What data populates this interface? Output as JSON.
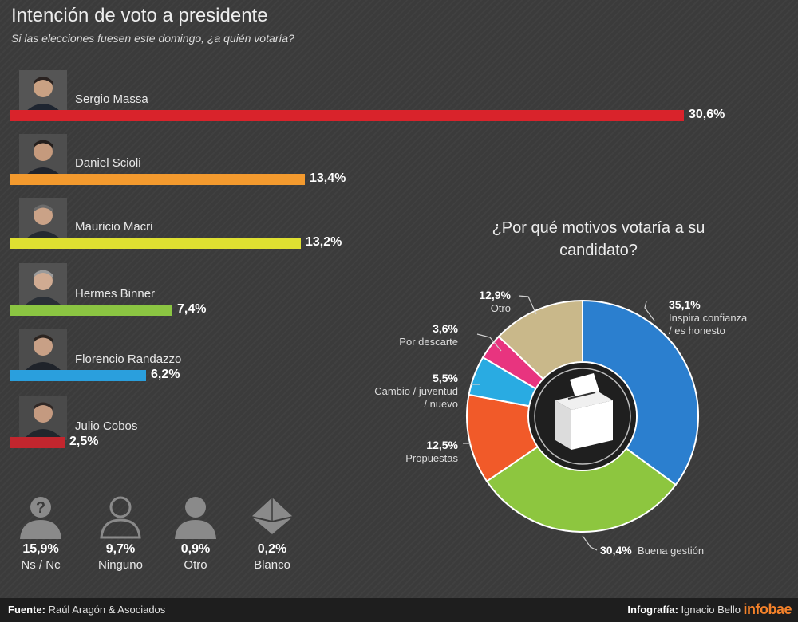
{
  "title": "Intención de voto a presidente",
  "subtitle": "Si las elecciones fuesen este domingo, ¿a quién votaría?",
  "chart_data": [
    {
      "type": "bar",
      "orientation": "horizontal",
      "title": "Intención de voto a presidente",
      "categories": [
        "Sergio Massa",
        "Daniel Scioli",
        "Mauricio Macri",
        "Hermes Binner",
        "Florencio Randazzo",
        "Julio Cobos"
      ],
      "values": [
        30.6,
        13.4,
        13.2,
        7.4,
        6.2,
        2.5
      ],
      "value_labels": [
        "30,6%",
        "13,4%",
        "13,2%",
        "7,4%",
        "6,2%",
        "2,5%"
      ],
      "colors": [
        "#d9232b",
        "#f39a2e",
        "#dfe031",
        "#8bc542",
        "#2a9fdd",
        "#c2262e"
      ],
      "grid": false
    },
    {
      "type": "pie",
      "variant": "donut",
      "title": "¿Por qué motivos votaría a su candidato?",
      "categories": [
        "Inspira confianza / es honesto",
        "Buena gestión",
        "Propuestas",
        "Cambio / juventud / nuevo",
        "Por descarte",
        "Otro"
      ],
      "values": [
        35.1,
        30.4,
        12.5,
        5.5,
        3.6,
        12.9
      ],
      "value_labels": [
        "35,1%",
        "30,4%",
        "12,5%",
        "5,5%",
        "3,6%",
        "12,9%"
      ],
      "colors": [
        "#2b7fcf",
        "#8dc63f",
        "#f15a29",
        "#29abe2",
        "#e8347f",
        "#c9b88a"
      ]
    }
  ],
  "chart_title": "¿Por qué motivos votaría a su candidato?",
  "candidates": [
    {
      "name": "Sergio Massa",
      "value": 30.6,
      "label": "30,6%",
      "color": "#d9232b"
    },
    {
      "name": "Daniel Scioli",
      "value": 13.4,
      "label": "13,4%",
      "color": "#f39a2e"
    },
    {
      "name": "Mauricio Macri",
      "value": 13.2,
      "label": "13,2%",
      "color": "#dfe031"
    },
    {
      "name": "Hermes Binner",
      "value": 7.4,
      "label": "7,4%",
      "color": "#8bc542"
    },
    {
      "name": "Florencio Randazzo",
      "value": 6.2,
      "label": "6,2%",
      "color": "#2a9fdd"
    },
    {
      "name": "Julio Cobos",
      "value": 2.5,
      "label": "2,5%",
      "color": "#c2262e"
    }
  ],
  "reasons": [
    {
      "pct": "35,1%",
      "label1": "Inspira confianza",
      "label2": "/ es honesto"
    },
    {
      "pct": "30,4%",
      "label1": "Buena gestión"
    },
    {
      "pct": "12,5%",
      "label1": "Propuestas"
    },
    {
      "pct": "5,5%",
      "label1": "Cambio / juventud",
      "label2": "/ nuevo"
    },
    {
      "pct": "3,6%",
      "label1": "Por descarte"
    },
    {
      "pct": "12,9%",
      "label1": "Otro"
    }
  ],
  "others": [
    {
      "pct": "15,9%",
      "label": "Ns / Nc",
      "icon": "question-person-icon"
    },
    {
      "pct": "9,7%",
      "label": "Ninguno",
      "icon": "outline-person-icon"
    },
    {
      "pct": "0,9%",
      "label": "Otro",
      "icon": "person-icon"
    },
    {
      "pct": "0,2%",
      "label": "Blanco",
      "icon": "envelope-icon"
    }
  ],
  "footer": {
    "source_label": "Fuente:",
    "source": "Raúl Aragón & Asociados",
    "credit_label": "Infografía:",
    "credit": "Ignacio Bello",
    "brand": "infobae"
  }
}
